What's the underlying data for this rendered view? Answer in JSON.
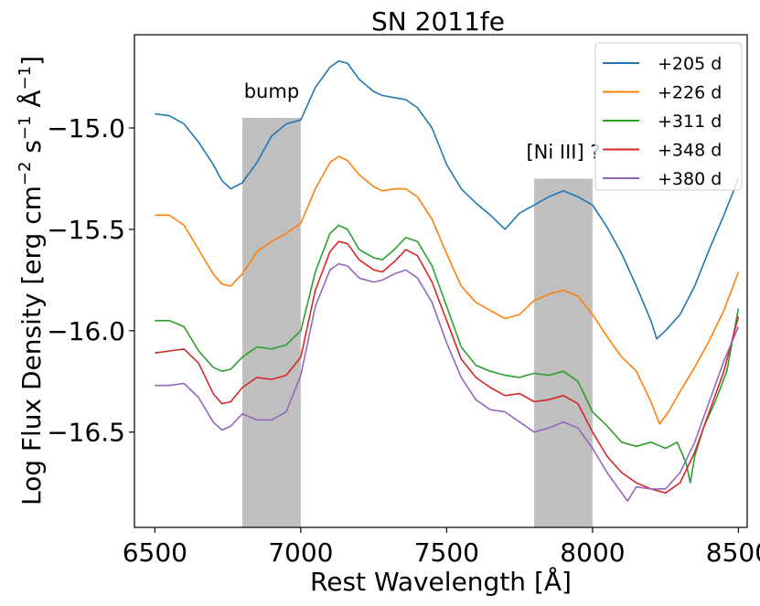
{
  "chart_data": {
    "type": "line",
    "title": "SN 2011fe",
    "xlabel": "Rest Wavelength [Å]",
    "ylabel": "Log Flux Density [erg cm",
    "ylabel_parts": [
      "Log Flux Density [erg cm",
      "−2",
      " s",
      "−1",
      " Å",
      "−1",
      "]"
    ],
    "xlim": [
      6430,
      8530
    ],
    "ylim": [
      -16.97,
      -14.54
    ],
    "xticks": [
      6500,
      7000,
      7500,
      8000,
      8500
    ],
    "xtick_labels": [
      "6500",
      "7000",
      "7500",
      "8000",
      "8500"
    ],
    "yticks": [
      -15.0,
      -15.5,
      -16.0,
      -16.5
    ],
    "ytick_labels": [
      "−15.0",
      "−15.5",
      "−16.0",
      "−16.5"
    ],
    "shaded_regions": [
      {
        "name": "bump",
        "label": "bump",
        "x": [
          6800,
          7000
        ],
        "y": [
          -16.97,
          -14.95
        ],
        "color": "#bfbfbf"
      },
      {
        "name": "ni-iii",
        "label": "[Ni III] ?",
        "x": [
          7800,
          8000
        ],
        "y": [
          -16.97,
          -15.25
        ],
        "color": "#bfbfbf"
      }
    ],
    "legend_location": "top-right",
    "series": [
      {
        "name": "+205 d",
        "color": "#1f77b4",
        "x": [
          6500,
          6550,
          6600,
          6650,
          6700,
          6730,
          6760,
          6800,
          6850,
          6900,
          6950,
          7000,
          7050,
          7100,
          7130,
          7160,
          7200,
          7250,
          7280,
          7320,
          7360,
          7400,
          7450,
          7500,
          7550,
          7600,
          7650,
          7700,
          7750,
          7800,
          7850,
          7900,
          7950,
          8000,
          8050,
          8100,
          8150,
          8200,
          8220,
          8250,
          8300,
          8350,
          8400,
          8450,
          8500
        ],
        "y": [
          -14.93,
          -14.94,
          -14.98,
          -15.07,
          -15.18,
          -15.26,
          -15.3,
          -15.27,
          -15.17,
          -15.04,
          -14.98,
          -14.96,
          -14.8,
          -14.7,
          -14.67,
          -14.68,
          -14.76,
          -14.82,
          -14.84,
          -14.85,
          -14.86,
          -14.9,
          -15.0,
          -15.18,
          -15.3,
          -15.37,
          -15.43,
          -15.5,
          -15.42,
          -15.38,
          -15.34,
          -15.31,
          -15.34,
          -15.38,
          -15.49,
          -15.62,
          -15.78,
          -15.95,
          -16.04,
          -16.0,
          -15.92,
          -15.78,
          -15.6,
          -15.43,
          -15.25
        ]
      },
      {
        "name": "+226 d",
        "color": "#ff7f0e",
        "x": [
          6500,
          6550,
          6600,
          6650,
          6700,
          6730,
          6760,
          6800,
          6850,
          6900,
          6950,
          7000,
          7050,
          7100,
          7130,
          7160,
          7200,
          7250,
          7280,
          7320,
          7360,
          7400,
          7450,
          7500,
          7550,
          7600,
          7650,
          7700,
          7750,
          7800,
          7850,
          7900,
          7950,
          8000,
          8050,
          8100,
          8150,
          8200,
          8230,
          8260,
          8300,
          8350,
          8400,
          8450,
          8500
        ],
        "y": [
          -15.43,
          -15.43,
          -15.48,
          -15.6,
          -15.72,
          -15.77,
          -15.78,
          -15.72,
          -15.61,
          -15.56,
          -15.52,
          -15.47,
          -15.3,
          -15.17,
          -15.14,
          -15.16,
          -15.23,
          -15.29,
          -15.31,
          -15.3,
          -15.3,
          -15.34,
          -15.45,
          -15.62,
          -15.78,
          -15.86,
          -15.9,
          -15.94,
          -15.92,
          -15.85,
          -15.82,
          -15.8,
          -15.83,
          -15.92,
          -16.03,
          -16.13,
          -16.2,
          -16.35,
          -16.46,
          -16.4,
          -16.3,
          -16.18,
          -16.05,
          -15.9,
          -15.71
        ]
      },
      {
        "name": "+311 d",
        "color": "#2ca02c",
        "x": [
          6500,
          6550,
          6600,
          6650,
          6700,
          6730,
          6760,
          6800,
          6850,
          6900,
          6950,
          7000,
          7050,
          7100,
          7130,
          7160,
          7200,
          7250,
          7280,
          7320,
          7360,
          7400,
          7450,
          7500,
          7550,
          7600,
          7650,
          7700,
          7750,
          7800,
          7850,
          7900,
          7950,
          8000,
          8050,
          8100,
          8150,
          8200,
          8250,
          8290,
          8320,
          8335,
          8350,
          8380,
          8420,
          8460,
          8500
        ],
        "y": [
          -15.95,
          -15.95,
          -15.98,
          -16.1,
          -16.18,
          -16.2,
          -16.19,
          -16.13,
          -16.08,
          -16.09,
          -16.07,
          -16.0,
          -15.71,
          -15.52,
          -15.48,
          -15.5,
          -15.6,
          -15.64,
          -15.65,
          -15.6,
          -15.54,
          -15.56,
          -15.68,
          -15.88,
          -16.08,
          -16.17,
          -16.2,
          -16.22,
          -16.23,
          -16.21,
          -16.22,
          -16.2,
          -16.25,
          -16.4,
          -16.47,
          -16.55,
          -16.57,
          -16.55,
          -16.58,
          -16.55,
          -16.65,
          -16.75,
          -16.62,
          -16.48,
          -16.35,
          -16.2,
          -15.89
        ]
      },
      {
        "name": "+348 d",
        "color": "#d62728",
        "x": [
          6500,
          6550,
          6600,
          6650,
          6700,
          6730,
          6760,
          6800,
          6850,
          6900,
          6950,
          7000,
          7050,
          7100,
          7130,
          7160,
          7200,
          7250,
          7280,
          7320,
          7360,
          7400,
          7450,
          7500,
          7550,
          7600,
          7650,
          7700,
          7750,
          7800,
          7850,
          7900,
          7950,
          8000,
          8050,
          8100,
          8150,
          8200,
          8250,
          8300,
          8350,
          8400,
          8450,
          8500
        ],
        "y": [
          -16.11,
          -16.1,
          -16.09,
          -16.16,
          -16.31,
          -16.36,
          -16.35,
          -16.28,
          -16.23,
          -16.24,
          -16.22,
          -16.13,
          -15.8,
          -15.61,
          -15.56,
          -15.57,
          -15.65,
          -15.7,
          -15.71,
          -15.66,
          -15.6,
          -15.63,
          -15.76,
          -15.95,
          -16.14,
          -16.23,
          -16.28,
          -16.32,
          -16.31,
          -16.35,
          -16.34,
          -16.32,
          -16.36,
          -16.5,
          -16.62,
          -16.7,
          -16.75,
          -16.78,
          -16.8,
          -16.75,
          -16.6,
          -16.4,
          -16.2,
          -15.93
        ]
      },
      {
        "name": "+380 d",
        "color": "#9467bd",
        "x": [
          6500,
          6550,
          6600,
          6650,
          6700,
          6730,
          6760,
          6800,
          6850,
          6900,
          6950,
          7000,
          7050,
          7100,
          7130,
          7160,
          7200,
          7250,
          7280,
          7320,
          7360,
          7400,
          7450,
          7500,
          7550,
          7600,
          7650,
          7700,
          7750,
          7800,
          7850,
          7900,
          7950,
          8000,
          8050,
          8100,
          8120,
          8150,
          8200,
          8250,
          8300,
          8350,
          8400,
          8450,
          8500
        ],
        "y": [
          -16.27,
          -16.27,
          -16.26,
          -16.33,
          -16.45,
          -16.49,
          -16.47,
          -16.41,
          -16.44,
          -16.44,
          -16.4,
          -16.22,
          -15.88,
          -15.7,
          -15.67,
          -15.68,
          -15.74,
          -15.76,
          -15.75,
          -15.72,
          -15.7,
          -15.74,
          -15.86,
          -16.06,
          -16.23,
          -16.34,
          -16.39,
          -16.4,
          -16.45,
          -16.5,
          -16.48,
          -16.45,
          -16.48,
          -16.58,
          -16.7,
          -16.8,
          -16.84,
          -16.77,
          -16.78,
          -16.78,
          -16.7,
          -16.55,
          -16.35,
          -16.15,
          -15.98
        ]
      }
    ]
  }
}
